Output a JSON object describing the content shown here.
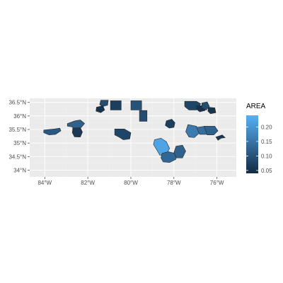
{
  "chart_data": {
    "type": "choropleth",
    "x_ticks": [
      "84°W",
      "82°W",
      "80°W",
      "78°W",
      "76°W"
    ],
    "x_tick_values": [
      -84,
      -82,
      -80,
      -78,
      -76
    ],
    "y_ticks": [
      "34°N",
      "34.5°N",
      "35°N",
      "35.5°N",
      "36°N",
      "36.5°N"
    ],
    "y_tick_values": [
      34,
      34.5,
      35,
      35.5,
      36,
      36.5
    ],
    "xlim": [
      -84.7,
      -75.1
    ],
    "ylim": [
      33.75,
      36.65
    ],
    "grid": true,
    "legend": {
      "title": "AREA",
      "position": "right",
      "range": [
        0.04,
        0.24
      ],
      "ticks": [
        0.05,
        0.1,
        0.15,
        0.2
      ],
      "tick_labels": [
        "0.05",
        "0.10",
        "0.15",
        "0.20"
      ],
      "color_low": "#132b43",
      "color_high": "#56b1f7"
    },
    "regions": [
      {
        "area": 0.11,
        "poly": [
          [
            -84.05,
            35.48
          ],
          [
            -83.55,
            35.52
          ],
          [
            -83.3,
            35.55
          ],
          [
            -83.25,
            35.45
          ],
          [
            -83.5,
            35.32
          ],
          [
            -83.8,
            35.3
          ],
          [
            -84.05,
            35.38
          ]
        ]
      },
      {
        "area": 0.12,
        "poly": [
          [
            -82.95,
            35.72
          ],
          [
            -82.6,
            35.82
          ],
          [
            -82.35,
            35.85
          ],
          [
            -82.15,
            35.72
          ],
          [
            -82.3,
            35.58
          ],
          [
            -82.55,
            35.5
          ],
          [
            -82.75,
            35.6
          ],
          [
            -82.95,
            35.62
          ]
        ]
      },
      {
        "area": 0.06,
        "poly": [
          [
            -82.7,
            35.55
          ],
          [
            -82.35,
            35.57
          ],
          [
            -82.25,
            35.4
          ],
          [
            -82.35,
            35.22
          ],
          [
            -82.62,
            35.23
          ],
          [
            -82.72,
            35.38
          ]
        ]
      },
      {
        "area": 0.09,
        "poly": [
          [
            -81.4,
            36.58
          ],
          [
            -81.05,
            36.58
          ],
          [
            -81.08,
            36.4
          ],
          [
            -81.3,
            36.35
          ],
          [
            -81.45,
            36.42
          ]
        ]
      },
      {
        "area": 0.05,
        "poly": [
          [
            -81.6,
            36.32
          ],
          [
            -81.3,
            36.38
          ],
          [
            -81.22,
            36.22
          ],
          [
            -81.4,
            36.12
          ],
          [
            -81.62,
            36.18
          ]
        ]
      },
      {
        "area": 0.07,
        "poly": [
          [
            -80.95,
            36.56
          ],
          [
            -80.45,
            36.56
          ],
          [
            -80.45,
            36.22
          ],
          [
            -80.95,
            36.22
          ]
        ]
      },
      {
        "area": 0.1,
        "poly": [
          [
            -80.0,
            36.56
          ],
          [
            -79.5,
            36.56
          ],
          [
            -79.5,
            36.22
          ],
          [
            -80.0,
            36.22
          ]
        ]
      },
      {
        "area": 0.09,
        "poly": [
          [
            -79.6,
            36.2
          ],
          [
            -79.25,
            36.2
          ],
          [
            -79.25,
            35.8
          ],
          [
            -79.6,
            35.8
          ]
        ]
      },
      {
        "area": 0.08,
        "poly": [
          [
            -80.75,
            35.52
          ],
          [
            -80.3,
            35.52
          ],
          [
            -80.0,
            35.38
          ],
          [
            -80.05,
            35.15
          ],
          [
            -80.35,
            35.12
          ],
          [
            -80.55,
            35.22
          ],
          [
            -80.75,
            35.3
          ]
        ]
      },
      {
        "area": 0.07,
        "poly": [
          [
            -78.35,
            35.82
          ],
          [
            -78.1,
            35.88
          ],
          [
            -77.95,
            35.75
          ],
          [
            -78.0,
            35.58
          ],
          [
            -78.22,
            35.55
          ],
          [
            -78.4,
            35.65
          ]
        ]
      },
      {
        "area": 0.22,
        "poly": [
          [
            -78.9,
            35.12
          ],
          [
            -78.6,
            35.18
          ],
          [
            -78.35,
            35.05
          ],
          [
            -78.2,
            34.8
          ],
          [
            -78.35,
            34.58
          ],
          [
            -78.65,
            34.55
          ],
          [
            -78.8,
            34.75
          ],
          [
            -78.95,
            34.95
          ]
        ]
      },
      {
        "area": 0.13,
        "poly": [
          [
            -78.55,
            34.62
          ],
          [
            -78.25,
            34.68
          ],
          [
            -77.95,
            34.62
          ],
          [
            -77.9,
            34.4
          ],
          [
            -78.2,
            34.28
          ],
          [
            -78.5,
            34.3
          ],
          [
            -78.6,
            34.45
          ]
        ]
      },
      {
        "area": 0.12,
        "poly": [
          [
            -77.9,
            34.88
          ],
          [
            -77.6,
            34.92
          ],
          [
            -77.45,
            34.7
          ],
          [
            -77.6,
            34.45
          ],
          [
            -77.88,
            34.45
          ],
          [
            -78.0,
            34.65
          ]
        ]
      },
      {
        "area": 0.08,
        "poly": [
          [
            -77.5,
            36.54
          ],
          [
            -76.95,
            36.54
          ],
          [
            -76.75,
            36.45
          ],
          [
            -76.95,
            36.22
          ],
          [
            -77.3,
            36.22
          ],
          [
            -77.5,
            36.35
          ]
        ]
      },
      {
        "area": 0.05,
        "poly": [
          [
            -76.95,
            36.38
          ],
          [
            -76.6,
            36.38
          ],
          [
            -76.55,
            36.2
          ],
          [
            -76.8,
            36.15
          ],
          [
            -76.95,
            36.25
          ]
        ]
      },
      {
        "area": 0.09,
        "poly": [
          [
            -76.7,
            36.48
          ],
          [
            -76.45,
            36.52
          ],
          [
            -76.35,
            36.35
          ],
          [
            -76.5,
            36.22
          ],
          [
            -76.7,
            36.3
          ]
        ]
      },
      {
        "area": 0.05,
        "poly": [
          [
            -76.4,
            36.32
          ],
          [
            -76.1,
            36.3
          ],
          [
            -76.05,
            36.12
          ],
          [
            -76.3,
            36.08
          ],
          [
            -76.42,
            36.18
          ]
        ]
      },
      {
        "area": 0.16,
        "poly": [
          [
            -77.35,
            35.68
          ],
          [
            -76.95,
            35.62
          ],
          [
            -76.8,
            35.38
          ],
          [
            -77.05,
            35.2
          ],
          [
            -77.3,
            35.22
          ],
          [
            -77.45,
            35.42
          ]
        ]
      },
      {
        "area": 0.14,
        "poly": [
          [
            -76.95,
            35.58
          ],
          [
            -76.55,
            35.62
          ],
          [
            -76.35,
            35.52
          ],
          [
            -76.45,
            35.32
          ],
          [
            -76.8,
            35.32
          ]
        ]
      },
      {
        "area": 0.12,
        "poly": [
          [
            -76.6,
            35.62
          ],
          [
            -76.1,
            35.62
          ],
          [
            -75.95,
            35.45
          ],
          [
            -76.15,
            35.3
          ],
          [
            -76.45,
            35.3
          ]
        ]
      },
      {
        "area": 0.06,
        "poly": [
          [
            -76.05,
            35.22
          ],
          [
            -75.75,
            35.3
          ],
          [
            -75.62,
            35.2
          ],
          [
            -75.8,
            35.18
          ],
          [
            -75.95,
            35.1
          ]
        ]
      }
    ]
  }
}
